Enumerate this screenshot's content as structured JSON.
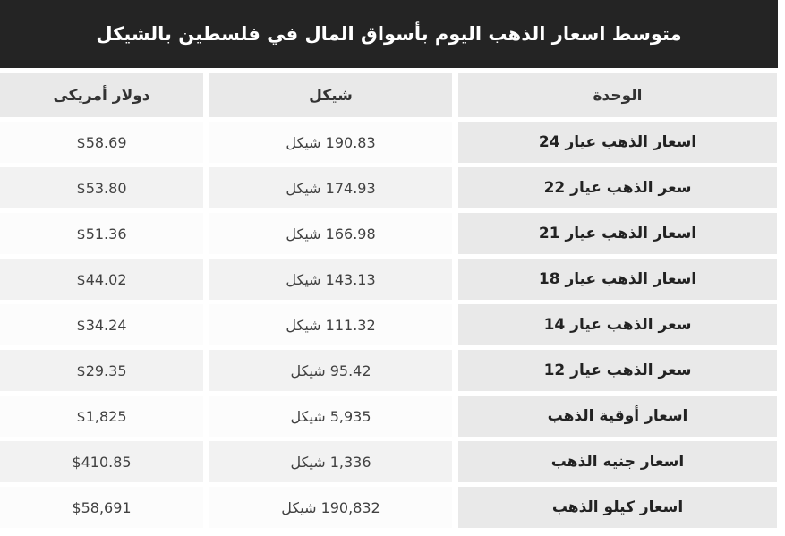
{
  "title": "متوسط اسعار الذهب اليوم بأسواق المال في فلسطين بالشيكل",
  "colors": {
    "title_bar_bg": "#242424",
    "title_text": "#ffffff",
    "header_cell_bg": "#e9e9e9",
    "unit_column_bg": "#e9e9e9",
    "row_odd_bg": "#fcfcfc",
    "row_even_bg": "#f2f2f2"
  },
  "table": {
    "headers": {
      "unit": "الوحدة",
      "shekel": "شيكل",
      "dollar": "دولار أمريكى"
    },
    "rows": [
      {
        "unit": "اسعار الذهب عيار 24",
        "shekel": "190.83 شيكل",
        "dollar": "$58.69"
      },
      {
        "unit": "سعر الذهب عيار 22",
        "shekel": "174.93 شيكل",
        "dollar": "$53.80"
      },
      {
        "unit": "اسعار الذهب عيار 21",
        "shekel": "166.98 شيكل",
        "dollar": "$51.36"
      },
      {
        "unit": "اسعار الذهب عيار 18",
        "shekel": "143.13 شيكل",
        "dollar": "$44.02"
      },
      {
        "unit": "سعر الذهب عيار 14",
        "shekel": "111.32 شيكل",
        "dollar": "$34.24"
      },
      {
        "unit": "سعر الذهب عيار 12",
        "shekel": "95.42 شيكل",
        "dollar": "$29.35"
      },
      {
        "unit": "اسعار أوقية الذهب",
        "shekel": "5,935 شيكل",
        "dollar": "$1,825"
      },
      {
        "unit": "اسعار جنيه الذهب",
        "shekel": "1,336 شيكل",
        "dollar": "$410.85"
      },
      {
        "unit": "اسعار كيلو الذهب",
        "shekel": "190,832 شيكل",
        "dollar": "$58,691"
      }
    ]
  }
}
